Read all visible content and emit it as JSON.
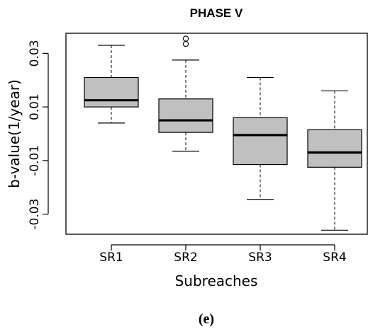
{
  "chart_data": {
    "type": "boxplot",
    "title": "PHASE V",
    "xlabel": "Subreaches",
    "ylabel": "b-value(1/year)",
    "categories": [
      "SR1",
      "SR2",
      "SR3",
      "SR4"
    ],
    "ylim": [
      -0.0375,
      0.0375
    ],
    "yticks": [
      0.03,
      0.01,
      -0.01,
      -0.03
    ],
    "ytick_labels": [
      "0.03",
      "0.01",
      "-0.01",
      "-0.03"
    ],
    "box_fill": "#c0c0c0",
    "boxes": [
      {
        "name": "SR1",
        "whisker_low": 0.004,
        "q1": 0.01,
        "median": 0.0125,
        "q3": 0.021,
        "whisker_high": 0.033,
        "outliers": []
      },
      {
        "name": "SR2",
        "whisker_low": -0.0065,
        "q1": 0.0005,
        "median": 0.005,
        "q3": 0.013,
        "whisker_high": 0.0275,
        "outliers": [
          0.0355,
          0.0335
        ]
      },
      {
        "name": "SR3",
        "whisker_low": -0.0245,
        "q1": -0.0115,
        "median": -0.0005,
        "q3": 0.006,
        "whisker_high": 0.021,
        "outliers": []
      },
      {
        "name": "SR4",
        "whisker_low": -0.036,
        "q1": -0.0125,
        "median": -0.007,
        "q3": 0.0015,
        "whisker_high": 0.016,
        "outliers": []
      }
    ]
  },
  "caption": "(e)"
}
